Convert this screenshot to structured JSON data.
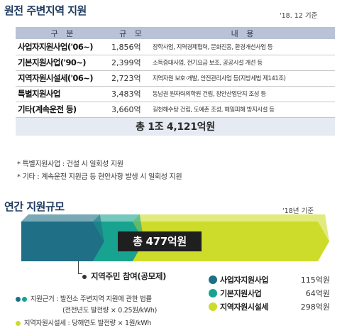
{
  "section1": {
    "title": "원전 주변지역 지원",
    "basis": "'18. 12 기준",
    "headers": [
      "구 분",
      "규 모",
      "내 용"
    ],
    "rows": [
      {
        "name": "사업자지원사업('06~)",
        "amount": "1,856억",
        "desc": "장학사업, 지역경제협력, 문화진흥, 환경개선사업 등"
      },
      {
        "name": "기본지원사업('90~)",
        "amount": "2,399억",
        "desc": "소득증대사업, 전기요금 보조, 공공시설 개선 등"
      },
      {
        "name": "지역자원시설세('06~)",
        "amount": "2,723억",
        "desc": "지역자원 보호·개발, 안전관리사업 등(지방세법 제141조)"
      },
      {
        "name": "특별지원사업",
        "amount": "3,483억",
        "desc": "동남권 원자력의학원 건립, 장안산업단지 조성 등"
      },
      {
        "name": "기타(계속운전 등)",
        "amount": "3,660억",
        "desc": "길천해수탕 건립, 도예촌 조성, 해일피해 방지시설 등"
      }
    ],
    "total": "총 1조 4,121억원",
    "notes": [
      "* 특별지원사업 : 건설 시 일회성 지원",
      "* 기타 : 계속운전 지원금 등 현안사항 발생 시 일회성 지원"
    ]
  },
  "section2": {
    "title": "연간 지원규모",
    "basis": "'18년 기준",
    "total_label": "총 477억원",
    "resident_label": "지역주민 참여(공모제)",
    "basis_notes": [
      "지원근거 : 발전소 주변지역 지원에 관한 법률",
      "(전전년도 발전량 × 0.25원/kWh)",
      "지역자원시설세 : 당해연도 발전량 × 1원/kWh"
    ],
    "legend": [
      {
        "name": "사업자지원사업",
        "value": "115억원",
        "color": "#1f6f86"
      },
      {
        "name": "기본지원사업",
        "value": "64억원",
        "color": "#17a38f"
      },
      {
        "name": "지역자원시설세",
        "value": "298억원",
        "color": "#cddc2a"
      }
    ],
    "shares": [
      115,
      64,
      298
    ]
  }
}
